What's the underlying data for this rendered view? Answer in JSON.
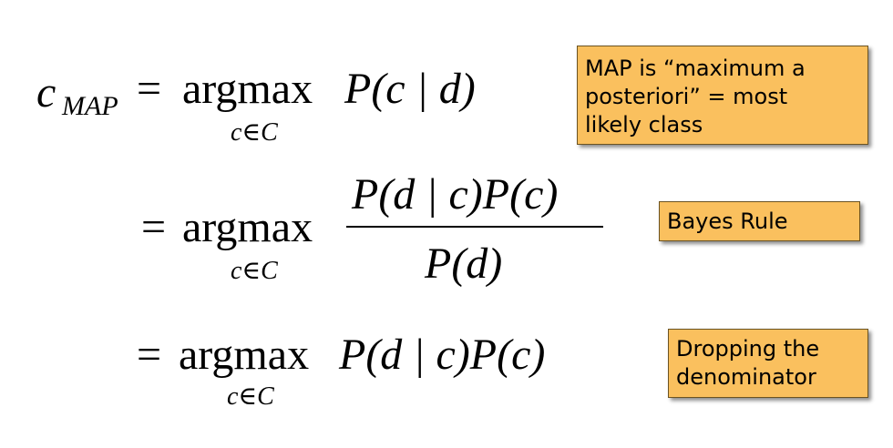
{
  "equation": {
    "row1": {
      "lhs_var": "c",
      "lhs_sub": "MAP",
      "eq": "=",
      "op": "argmax",
      "under": "c∈C",
      "expr": "P(c | d)"
    },
    "row2": {
      "eq": "=",
      "op": "argmax",
      "under": "c∈C",
      "numerator": "P(d | c)P(c)",
      "denominator": "P(d)"
    },
    "row3": {
      "eq": "=",
      "op": "argmax",
      "under": "c∈C",
      "expr": "P(d | c)P(c)"
    }
  },
  "notes": {
    "map": {
      "lines": [
        "MAP is “maximum a",
        "posteriori”  = most",
        "likely class"
      ]
    },
    "bayes": {
      "lines": [
        "Bayes Rule"
      ]
    },
    "dropping": {
      "lines": [
        "Dropping the",
        "denominator"
      ]
    }
  },
  "colors": {
    "note_fill": "#fac05e",
    "note_border": "#6b5322"
  }
}
